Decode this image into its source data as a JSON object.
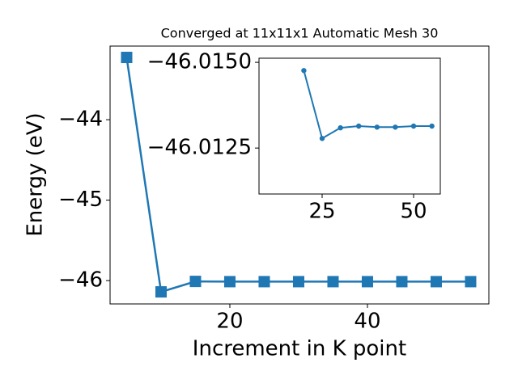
{
  "chart_data": [
    {
      "type": "line",
      "title": "Converged at 11x11x1 Automatic Mesh 30",
      "xlabel": "Increment in K point",
      "ylabel": "Energy (eV)",
      "x": [
        5,
        10,
        15,
        20,
        25,
        30,
        35,
        40,
        45,
        50,
        55
      ],
      "series": [
        {
          "color": "#1f77b4",
          "marker": "square",
          "values": [
            -43.226,
            -46.14,
            -46.01,
            -46.013,
            -46.013,
            -46.013,
            -46.013,
            -46.013,
            -46.013,
            -46.013,
            -46.013
          ]
        }
      ],
      "xlim": [
        2.59,
        57.65
      ],
      "ylim": [
        -46.29,
        -43.085
      ],
      "xticks": [
        20,
        40
      ],
      "yticks": [
        {
          "value": -46,
          "label": "−46"
        },
        {
          "value": -45,
          "label": "−45"
        },
        {
          "value": -44,
          "label": "−44"
        }
      ]
    },
    {
      "type": "line",
      "x": [
        20,
        25,
        30,
        35,
        40,
        45,
        50,
        55
      ],
      "series": [
        {
          "color": "#1f77b4",
          "marker": "circle",
          "values": [
            -46.01476,
            -46.01278,
            -46.01309,
            -46.01314,
            -46.01311,
            -46.01311,
            -46.01314,
            -46.01314
          ]
        }
      ],
      "xlim": [
        7.74,
        57.3
      ],
      "ylim": [
        -46.01116,
        -46.01512
      ],
      "xticks": [
        25,
        50
      ],
      "yticks": [
        {
          "value": -46.015,
          "label": "−46.0150"
        },
        {
          "value": -46.0125,
          "label": "−46.0125"
        }
      ]
    }
  ]
}
